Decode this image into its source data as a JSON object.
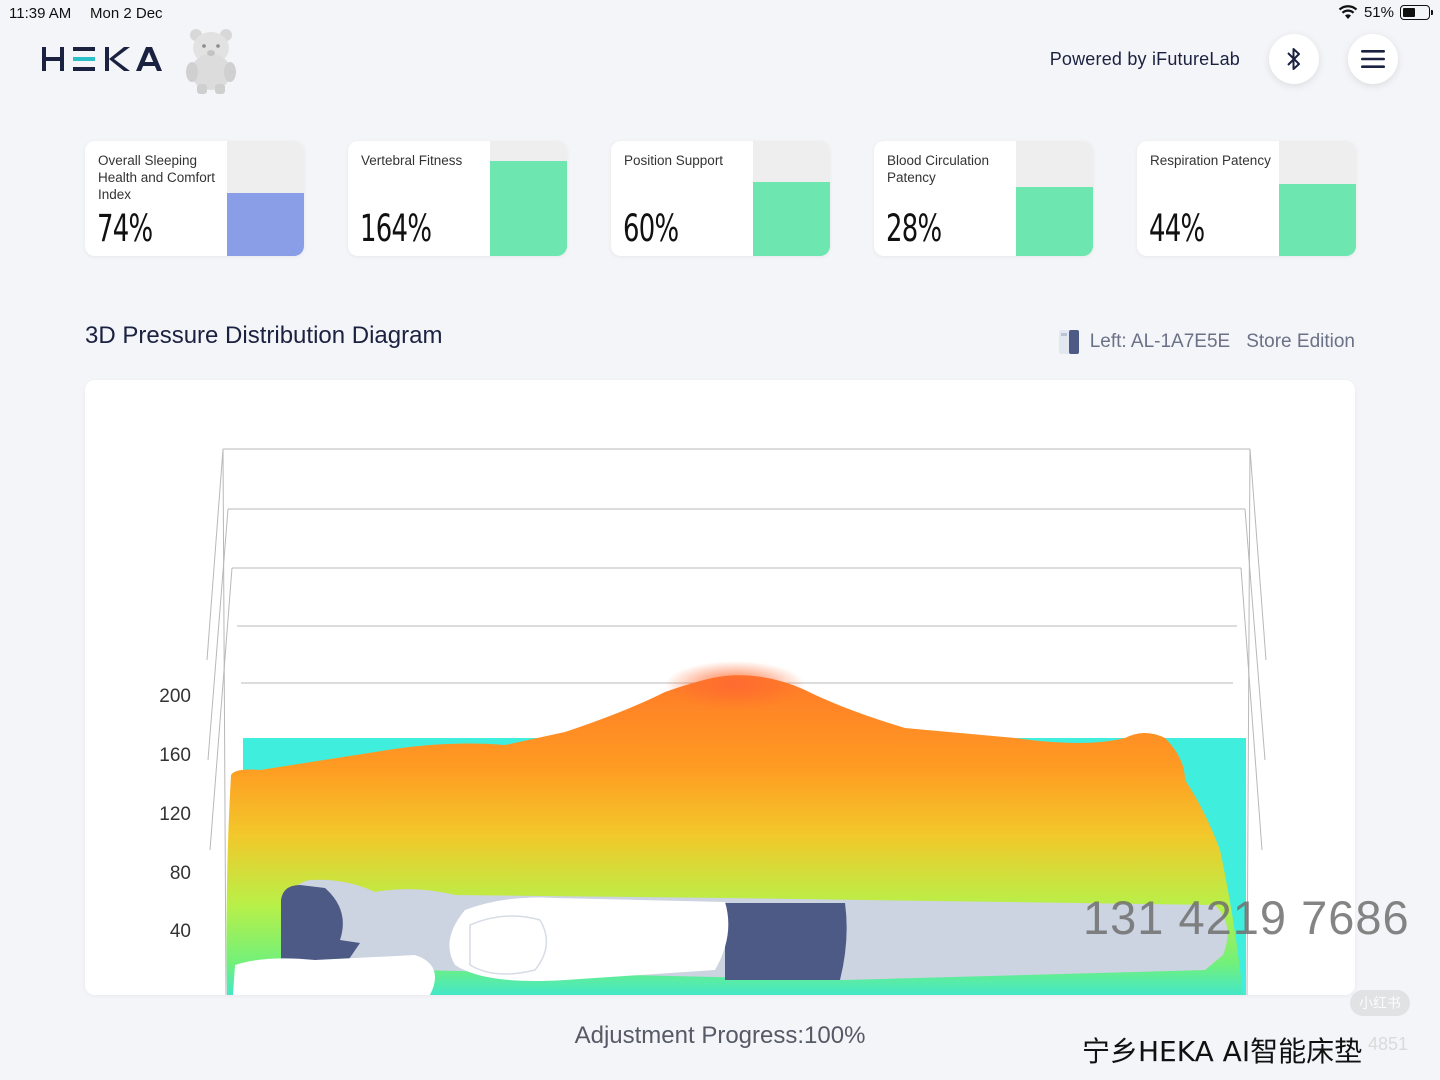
{
  "status_bar": {
    "time": "11:39 AM",
    "date": "Mon 2 Dec",
    "battery_text": "51%",
    "battery_level": 0.51,
    "icons": [
      "wifi-icon",
      "battery-icon"
    ]
  },
  "header": {
    "logo_text": "HEKA",
    "powered_by": "Powered by iFutureLab",
    "buttons": {
      "bluetooth": "bluetooth-icon",
      "menu": "hamburger-menu-icon"
    }
  },
  "metrics": [
    {
      "label": "Overall Sleeping Health and Comfort Index",
      "value": "74%",
      "level": 0.55,
      "color": "#8a9ee8"
    },
    {
      "label": "Vertebral Fitness",
      "value": "164%",
      "level": 0.83,
      "color": "#6ee6b0"
    },
    {
      "label": "Position Support",
      "value": "60%",
      "level": 0.64,
      "color": "#6ee6b0"
    },
    {
      "label": "Blood Circulation Patency",
      "value": "28%",
      "level": 0.6,
      "color": "#6ee6b0"
    },
    {
      "label": "Respiration Patency",
      "value": "44%",
      "level": 0.63,
      "color": "#6ee6b0"
    }
  ],
  "diagram": {
    "title": "3D Pressure Distribution Diagram",
    "device_side_id": "Left: AL-1A7E5E",
    "edition": "Store Edition",
    "y_ticks": [
      "200",
      "160",
      "120",
      "80",
      "40"
    ],
    "colors": {
      "low": "#3ee8e0",
      "mid": "#a8f050",
      "high": "#ff8a20",
      "peak": "#ff6a30",
      "figure": "#c9d0de",
      "figure_dark": "#4e5a86"
    }
  },
  "footer": {
    "progress_text": "Adjustment Progress:100%",
    "watermark_phone": "131 4219 7686",
    "brand_caption": "宁乡HEKA AI智能床垫",
    "watermark_badge": "小红书",
    "watermark_number": "4851"
  }
}
